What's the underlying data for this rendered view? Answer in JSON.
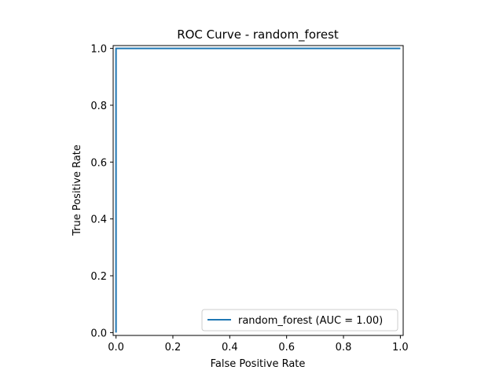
{
  "chart_data": {
    "type": "line",
    "title": "ROC Curve - random_forest",
    "xlabel": "False Positive Rate",
    "ylabel": "True Positive Rate",
    "xlim": [
      -0.01,
      1.01
    ],
    "ylim": [
      -0.01,
      1.01
    ],
    "xticks": [
      "0.0",
      "0.2",
      "0.4",
      "0.6",
      "0.8",
      "1.0"
    ],
    "yticks": [
      "0.0",
      "0.2",
      "0.4",
      "0.6",
      "0.8",
      "1.0"
    ],
    "grid": false,
    "legend_position": "lower right",
    "series": [
      {
        "name": "random_forest (AUC = 1.00)",
        "color": "#1f77b4",
        "x": [
          0.0,
          0.0,
          1.0
        ],
        "y": [
          0.0,
          1.0,
          1.0
        ]
      }
    ]
  }
}
